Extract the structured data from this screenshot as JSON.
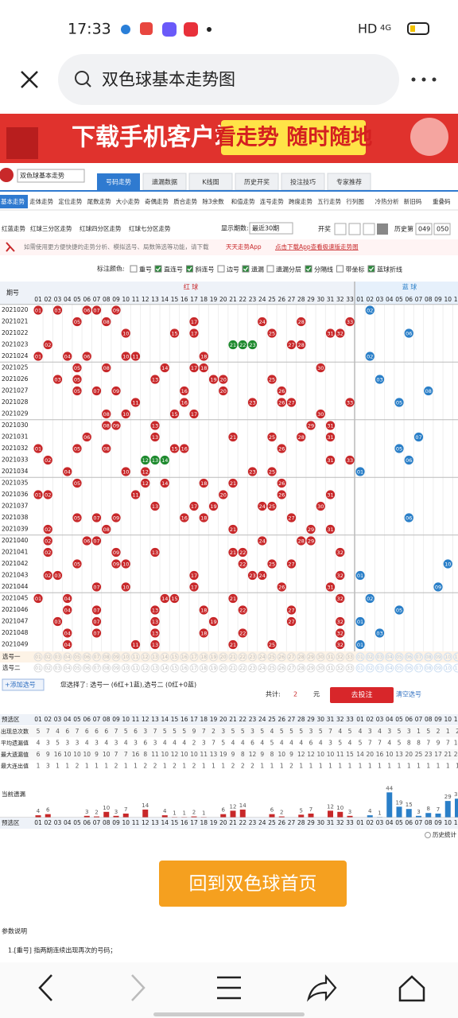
{
  "status_bar": {
    "time": "17:33",
    "network": "HD",
    "signal": "4G"
  },
  "search": {
    "query": "双色球基本走势图"
  },
  "banner": {
    "text": "下载手机客户端",
    "highlight": "看走势 随时随地"
  },
  "selector": "双色球基本走势",
  "tabs": [
    "号码走势",
    "遗漏数据",
    "K线图",
    "历史开奖",
    "投注技巧",
    "专家推荐"
  ],
  "sub_tabs": [
    "基本走势",
    "走体走势",
    "定位走势",
    "尾数走势",
    "大小走势",
    "奇偶走势",
    "质合走势",
    "除3余数",
    "和值走势",
    "连号走势",
    "跨度走势",
    "五行走势",
    "行列图",
    "冷热分析",
    "新旧码",
    "重叠码"
  ],
  "zone_tabs": [
    "红蓝走势",
    "红球三分区走势",
    "红球四分区走势",
    "红球七分区走势"
  ],
  "period_label": "显示期数:",
  "period_select": "最近30期",
  "draw_label": "开奖",
  "history_label": "历史第",
  "history_from": "049",
  "history_to": "050",
  "notice": {
    "text": "如需使用更方便快捷的走势分析、模拟选号、局数筛选等功能，请下载",
    "app": "天天走势App",
    "link": "点击下载App查看极速版走势图"
  },
  "options": {
    "label": "标注颜色:",
    "items": [
      {
        "text": "重号",
        "checked": false
      },
      {
        "text": "直连号",
        "checked": true
      },
      {
        "text": "斜连号",
        "checked": true
      },
      {
        "text": "边号",
        "checked": false
      },
      {
        "text": "遗漏",
        "checked": true
      },
      {
        "text": "遗漏分层",
        "checked": false
      },
      {
        "text": "分隔线",
        "checked": true
      },
      {
        "text": "带坐标",
        "checked": false
      },
      {
        "text": "蓝球折线",
        "checked": true
      }
    ]
  },
  "table": {
    "period_header": "期号",
    "red_header": "红 球",
    "blue_header": "蓝 球",
    "red_numbers": [
      "01",
      "02",
      "03",
      "04",
      "05",
      "06",
      "07",
      "08",
      "09",
      "10",
      "11",
      "12",
      "13",
      "14",
      "15",
      "16",
      "17",
      "18",
      "19",
      "20",
      "21",
      "22",
      "23",
      "24",
      "25",
      "26",
      "27",
      "28",
      "29",
      "30",
      "31",
      "32",
      "33"
    ],
    "blue_numbers": [
      "01",
      "02",
      "03",
      "04",
      "05",
      "06",
      "07",
      "08",
      "09",
      "10",
      "11"
    ],
    "rows": [
      {
        "period": "2021020",
        "red": [
          "01",
          "03",
          "06",
          "07",
          "09"
        ],
        "blue": "02"
      },
      {
        "period": "2021021",
        "red": [
          "05",
          "08",
          "17",
          "24",
          "28",
          "33"
        ],
        "blue": null
      },
      {
        "period": "2021022",
        "red": [
          "10",
          "15",
          "17",
          "25",
          "31",
          "32"
        ],
        "blue": "06"
      },
      {
        "period": "2021023",
        "red": [
          "02",
          "21",
          "22",
          "23",
          "27",
          "28"
        ],
        "blue": null
      },
      {
        "period": "2021024",
        "red": [
          "01",
          "04",
          "06",
          "10",
          "11",
          "18"
        ],
        "blue": "02"
      },
      {
        "period": "2021025",
        "red": [
          "05",
          "08",
          "14",
          "17",
          "18",
          "30"
        ],
        "blue": null
      },
      {
        "period": "2021026",
        "red": [
          "03",
          "05",
          "13",
          "19",
          "20",
          "25"
        ],
        "blue": "03"
      },
      {
        "period": "2021027",
        "red": [
          "05",
          "07",
          "09",
          "16",
          "20",
          "26"
        ],
        "blue": "08"
      },
      {
        "period": "2021028",
        "red": [
          "11",
          "16",
          "23",
          "26",
          "27",
          "33"
        ],
        "blue": "05"
      },
      {
        "period": "2021029",
        "red": [
          "08",
          "10",
          "15",
          "17",
          "30"
        ],
        "blue": null
      },
      {
        "period": "2021030",
        "red": [
          "08",
          "09",
          "13",
          "29",
          "31"
        ],
        "blue": null
      },
      {
        "period": "2021031",
        "red": [
          "06",
          "13",
          "21",
          "25",
          "28",
          "31"
        ],
        "blue": "07"
      },
      {
        "period": "2021032",
        "red": [
          "01",
          "05",
          "08",
          "15",
          "16",
          "26"
        ],
        "blue": "05"
      },
      {
        "period": "2021033",
        "red": [
          "02",
          "12",
          "13",
          "14",
          "31",
          "33"
        ],
        "blue": "06"
      },
      {
        "period": "2021034",
        "red": [
          "04",
          "10",
          "12",
          "23",
          "25"
        ],
        "blue": "01"
      },
      {
        "period": "2021035",
        "red": [
          "05",
          "12",
          "14",
          "18",
          "21",
          "26"
        ],
        "blue": null
      },
      {
        "period": "2021036",
        "red": [
          "01",
          "02",
          "11",
          "20",
          "26",
          "31"
        ],
        "blue": null
      },
      {
        "period": "2021037",
        "red": [
          "13",
          "17",
          "19",
          "24",
          "25",
          "30"
        ],
        "blue": null
      },
      {
        "period": "2021038",
        "red": [
          "05",
          "07",
          "09",
          "16",
          "18",
          "27"
        ],
        "blue": "06"
      },
      {
        "period": "2021039",
        "red": [
          "02",
          "08",
          "21",
          "29",
          "31"
        ],
        "blue": null
      },
      {
        "period": "2021040",
        "red": [
          "02",
          "06",
          "07",
          "24",
          "28",
          "29"
        ],
        "blue": null
      },
      {
        "period": "2021041",
        "red": [
          "02",
          "09",
          "13",
          "21",
          "22",
          "32"
        ],
        "blue": null
      },
      {
        "period": "2021042",
        "red": [
          "05",
          "09",
          "10",
          "22",
          "25",
          "27"
        ],
        "blue": "10"
      },
      {
        "period": "2021043",
        "red": [
          "02",
          "03",
          "17",
          "23",
          "24",
          "32"
        ],
        "blue": "01"
      },
      {
        "period": "2021044",
        "red": [
          "07",
          "10",
          "17",
          "26",
          "31"
        ],
        "blue": "09"
      },
      {
        "period": "2021045",
        "red": [
          "01",
          "04",
          "14",
          "15",
          "21",
          "32"
        ],
        "blue": "02"
      },
      {
        "period": "2021046",
        "red": [
          "04",
          "07",
          "13",
          "18",
          "22",
          "27"
        ],
        "blue": "05"
      },
      {
        "period": "2021047",
        "red": [
          "03",
          "07",
          "13",
          "19",
          "27",
          "32"
        ],
        "blue": "01"
      },
      {
        "period": "2021048",
        "red": [
          "04",
          "07",
          "13",
          "18",
          "22",
          "32"
        ],
        "blue": "03"
      },
      {
        "period": "2021049",
        "red": [
          "04",
          "11",
          "13",
          "21",
          "25",
          "32"
        ],
        "blue": "01"
      }
    ],
    "pick_rows": [
      "选号一",
      "选号二"
    ]
  },
  "selection": {
    "add": "+添加选号",
    "summary": "您选择了: 选号一 (6红+1蓝),选号二 (0红+0蓝)",
    "total_label": "共计:",
    "total": "2",
    "unit": "元",
    "bet": "去投注",
    "clear": "清空选号"
  },
  "stats": {
    "header": "预选区",
    "rows": [
      {
        "label": "出现总次数",
        "values": [
          5,
          7,
          4,
          6,
          7,
          6,
          6,
          6,
          7,
          5,
          6,
          3,
          7,
          5,
          5,
          5,
          9,
          7,
          2,
          3,
          5,
          5,
          3,
          5,
          4,
          5,
          5,
          5,
          3,
          5,
          7,
          4,
          5,
          4,
          3,
          4,
          3,
          5,
          3,
          1,
          5,
          2,
          1,
          2
        ]
      },
      {
        "label": "平均遗漏值",
        "values": [
          4,
          3,
          5,
          3,
          3,
          4,
          3,
          4,
          3,
          4,
          3,
          6,
          3,
          4,
          4,
          4,
          2,
          3,
          7,
          5,
          4,
          4,
          6,
          4,
          5,
          4,
          4,
          4,
          6,
          4,
          3,
          5,
          4,
          5,
          7,
          7,
          4,
          5,
          8,
          8,
          7,
          9,
          7,
          14
        ]
      },
      {
        "label": "最大遗漏值",
        "values": [
          6,
          9,
          16,
          10,
          10,
          10,
          9,
          10,
          7,
          7,
          16,
          8,
          11,
          10,
          12,
          10,
          10,
          11,
          13,
          19,
          9,
          8,
          12,
          9,
          8,
          10,
          9,
          12,
          12,
          10,
          10,
          11,
          15,
          14,
          20,
          16,
          10,
          13,
          20,
          25,
          23,
          17,
          21,
          24
        ]
      },
      {
        "label": "最大连出值",
        "values": [
          1,
          3,
          1,
          1,
          2,
          1,
          1,
          1,
          2,
          1,
          1,
          2,
          2,
          1,
          2,
          1,
          2,
          1,
          1,
          1,
          2,
          2,
          2,
          1,
          1,
          1,
          2,
          1,
          1,
          1,
          1,
          1,
          1,
          1,
          1,
          1,
          1,
          1,
          1,
          1,
          1,
          1,
          1,
          1
        ]
      }
    ],
    "current_label": "当前遗漏",
    "current": [
      4,
      6,
      null,
      null,
      null,
      3,
      2,
      10,
      3,
      7,
      null,
      14,
      null,
      4,
      1,
      1,
      2,
      1,
      null,
      6,
      12,
      14,
      null,
      null,
      6,
      2,
      null,
      5,
      7,
      null,
      12,
      10,
      3,
      null,
      4,
      1,
      44,
      19,
      15,
      3,
      8,
      7,
      29,
      33
    ],
    "footer": "预选区",
    "history": "历史统计"
  },
  "home_button": "回到双色球首页",
  "notes": {
    "title": "参数说明",
    "items": [
      "1.[重号] 指两期连续出现再次的号码；"
    ]
  }
}
